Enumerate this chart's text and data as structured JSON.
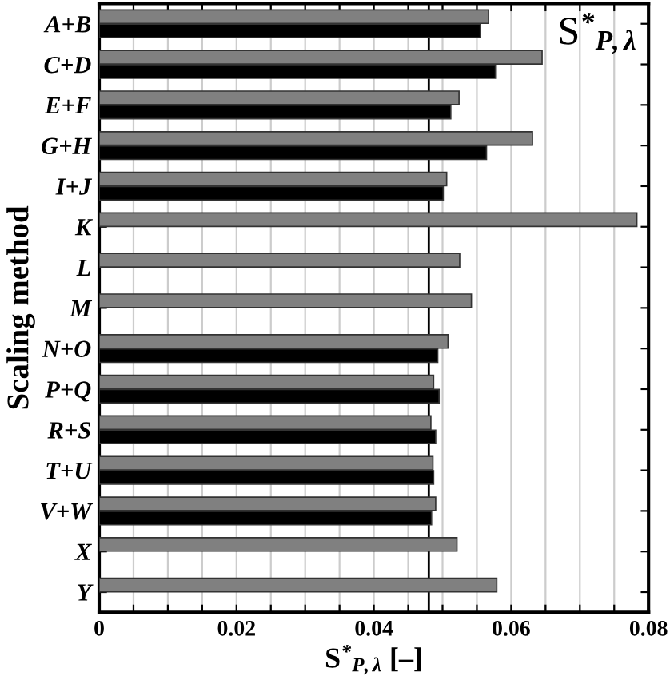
{
  "chart_data": {
    "type": "bar",
    "orientation": "horizontal",
    "ylabel": "Scaling method",
    "xlabel": "S$^{*}$$_{P,λ}$ [–]",
    "annotations": [
      "S$^{*}$$_{P,λ}$"
    ],
    "categories": [
      "A+B",
      "C+D",
      "E+F",
      "G+H",
      "I+J",
      "K",
      "L",
      "M",
      "N+O",
      "P+Q",
      "R+S",
      "T+U",
      "V+W",
      "X",
      "Y"
    ],
    "series": [
      {
        "color": "#808080",
        "values": [
          0.0567,
          0.0645,
          0.0524,
          0.0631,
          0.0506,
          0.0783,
          0.0525,
          0.0542,
          0.0508,
          0.0487,
          0.0483,
          0.0486,
          0.049,
          0.0521,
          0.0579
        ]
      },
      {
        "color": "#000000",
        "values": [
          0.0555,
          0.0577,
          0.0512,
          0.0564,
          0.0501,
          null,
          null,
          null,
          0.0493,
          0.0495,
          0.049,
          0.0487,
          0.0484,
          null,
          null
        ]
      }
    ],
    "xlim": [
      0,
      0.08
    ],
    "xticks": [
      0,
      {
        "value": 0.005,
        "label": null
      },
      {
        "value": 0.01,
        "label": null
      },
      {
        "value": 0.015,
        "label": null
      },
      0.02,
      {
        "value": 0.025,
        "label": null
      },
      {
        "value": 0.03,
        "label": null
      },
      {
        "value": 0.035,
        "label": null
      },
      0.04,
      {
        "value": 0.045,
        "label": null
      },
      {
        "value": 0.05,
        "label": null
      },
      {
        "value": 0.055,
        "label": null
      },
      0.06,
      {
        "value": 0.065,
        "label": null
      },
      {
        "value": 0.07,
        "label": null
      },
      {
        "value": 0.075,
        "label": null
      },
      0.08
    ],
    "ref_lines": [
      {
        "axis": "x",
        "value": 0.048,
        "label": null,
        "color": "#000000"
      }
    ],
    "grid": "x",
    "legend": false
  }
}
